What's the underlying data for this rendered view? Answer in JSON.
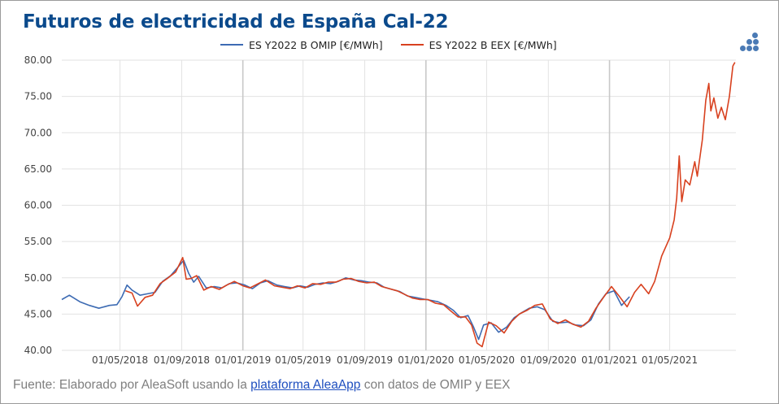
{
  "title": "Futuros de electricidad de España Cal-22",
  "footer": {
    "prefix": "Fuente: Elaborado por AleaSoft usando la ",
    "link": "plataforma AleaApp",
    "suffix": " con datos de OMIP y EEX"
  },
  "logo_icon": "aleasoft-dots-icon",
  "colors": {
    "omip": "#3d6bb3",
    "eex": "#d8411f",
    "grid": "#e2e2e2",
    "title": "#0b4a8c"
  },
  "chart_data": {
    "type": "line",
    "title": "Futuros de electricidad de España Cal-22",
    "xlabel": "",
    "ylabel": "",
    "ylim": [
      40,
      80
    ],
    "yticks": [
      "40.00",
      "45.00",
      "50.00",
      "55.00",
      "60.00",
      "65.00",
      "70.00",
      "75.00",
      "80.00"
    ],
    "x_ticks": [
      "01/05/2018",
      "01/09/2018",
      "01/01/2019",
      "01/05/2019",
      "01/09/2019",
      "01/01/2020",
      "01/05/2020",
      "01/09/2020",
      "01/01/2021",
      "01/05/2021"
    ],
    "x_range": [
      "2018-01-05",
      "2021-09-10"
    ],
    "legend": "top-center",
    "grid": true,
    "series": [
      {
        "name": "ES Y2022 B OMIP [€/MWh]",
        "color": "#3d6bb3",
        "points": [
          [
            "2018-01-05",
            47.0
          ],
          [
            "2018-01-20",
            47.6
          ],
          [
            "2018-02-10",
            46.7
          ],
          [
            "2018-03-01",
            46.2
          ],
          [
            "2018-03-20",
            45.8
          ],
          [
            "2018-04-10",
            46.2
          ],
          [
            "2018-04-25",
            46.3
          ],
          [
            "2018-05-05",
            47.4
          ],
          [
            "2018-05-15",
            49.0
          ],
          [
            "2018-05-25",
            48.3
          ],
          [
            "2018-06-10",
            47.6
          ],
          [
            "2018-06-25",
            47.8
          ],
          [
            "2018-07-10",
            48.0
          ],
          [
            "2018-07-25",
            49.5
          ],
          [
            "2018-08-10",
            50.3
          ],
          [
            "2018-08-25",
            51.5
          ],
          [
            "2018-09-05",
            52.4
          ],
          [
            "2018-09-15",
            50.6
          ],
          [
            "2018-09-25",
            49.4
          ],
          [
            "2018-10-05",
            50.2
          ],
          [
            "2018-10-20",
            48.6
          ],
          [
            "2018-11-05",
            48.8
          ],
          [
            "2018-11-20",
            48.6
          ],
          [
            "2018-12-05",
            49.2
          ],
          [
            "2018-12-20",
            49.3
          ],
          [
            "2019-01-05",
            49.0
          ],
          [
            "2019-01-20",
            48.5
          ],
          [
            "2019-02-05",
            49.3
          ],
          [
            "2019-02-20",
            49.6
          ],
          [
            "2019-03-10",
            49.0
          ],
          [
            "2019-03-25",
            48.8
          ],
          [
            "2019-04-10",
            48.6
          ],
          [
            "2019-04-25",
            48.9
          ],
          [
            "2019-05-10",
            48.7
          ],
          [
            "2019-05-25",
            49.1
          ],
          [
            "2019-06-10",
            49.3
          ],
          [
            "2019-06-25",
            49.2
          ],
          [
            "2019-07-10",
            49.5
          ],
          [
            "2019-07-25",
            50.0
          ],
          [
            "2019-08-10",
            49.7
          ],
          [
            "2019-08-25",
            49.6
          ],
          [
            "2019-09-10",
            49.4
          ],
          [
            "2019-09-25",
            49.3
          ],
          [
            "2019-10-10",
            48.7
          ],
          [
            "2019-10-25",
            48.4
          ],
          [
            "2019-11-10",
            48.1
          ],
          [
            "2019-11-25",
            47.5
          ],
          [
            "2019-12-10",
            47.3
          ],
          [
            "2019-12-25",
            47.1
          ],
          [
            "2020-01-10",
            46.9
          ],
          [
            "2020-01-25",
            46.7
          ],
          [
            "2020-02-10",
            46.2
          ],
          [
            "2020-02-25",
            45.5
          ],
          [
            "2020-03-10",
            44.5
          ],
          [
            "2020-03-25",
            44.8
          ],
          [
            "2020-04-05",
            43.2
          ],
          [
            "2020-04-15",
            41.5
          ],
          [
            "2020-04-25",
            43.5
          ],
          [
            "2020-05-10",
            43.8
          ],
          [
            "2020-05-25",
            42.5
          ],
          [
            "2020-06-10",
            43.2
          ],
          [
            "2020-06-25",
            44.5
          ],
          [
            "2020-07-10",
            45.2
          ],
          [
            "2020-07-25",
            45.8
          ],
          [
            "2020-08-10",
            46.0
          ],
          [
            "2020-08-25",
            45.6
          ],
          [
            "2020-09-10",
            44.0
          ],
          [
            "2020-09-25",
            43.8
          ],
          [
            "2020-10-10",
            43.9
          ],
          [
            "2020-10-25",
            43.5
          ],
          [
            "2020-11-10",
            43.4
          ],
          [
            "2020-11-25",
            44.2
          ],
          [
            "2020-12-10",
            46.4
          ],
          [
            "2020-12-25",
            47.8
          ],
          [
            "2021-01-10",
            48.2
          ],
          [
            "2021-01-25",
            46.2
          ],
          [
            "2021-02-10",
            47.4
          ]
        ]
      },
      {
        "name": "ES Y2022 B EEX [€/MWh]",
        "color": "#d8411f",
        "points": [
          [
            "2018-05-12",
            48.2
          ],
          [
            "2018-05-25",
            47.9
          ],
          [
            "2018-06-05",
            46.1
          ],
          [
            "2018-06-20",
            47.3
          ],
          [
            "2018-07-05",
            47.6
          ],
          [
            "2018-07-20",
            49.2
          ],
          [
            "2018-08-05",
            50.0
          ],
          [
            "2018-08-20",
            50.8
          ],
          [
            "2018-09-03",
            52.8
          ],
          [
            "2018-09-10",
            49.8
          ],
          [
            "2018-09-20",
            49.9
          ],
          [
            "2018-10-01",
            50.3
          ],
          [
            "2018-10-15",
            48.3
          ],
          [
            "2018-10-30",
            48.8
          ],
          [
            "2018-11-15",
            48.4
          ],
          [
            "2018-11-30",
            49.0
          ],
          [
            "2018-12-15",
            49.5
          ],
          [
            "2019-01-01",
            48.9
          ],
          [
            "2019-01-15",
            48.6
          ],
          [
            "2019-02-01",
            49.2
          ],
          [
            "2019-02-15",
            49.7
          ],
          [
            "2019-03-05",
            48.9
          ],
          [
            "2019-03-20",
            48.7
          ],
          [
            "2019-04-05",
            48.5
          ],
          [
            "2019-04-20",
            48.9
          ],
          [
            "2019-05-05",
            48.6
          ],
          [
            "2019-05-20",
            49.2
          ],
          [
            "2019-06-05",
            49.1
          ],
          [
            "2019-06-20",
            49.4
          ],
          [
            "2019-07-05",
            49.4
          ],
          [
            "2019-07-20",
            49.8
          ],
          [
            "2019-08-05",
            49.9
          ],
          [
            "2019-08-20",
            49.5
          ],
          [
            "2019-09-05",
            49.3
          ],
          [
            "2019-09-20",
            49.4
          ],
          [
            "2019-10-05",
            48.8
          ],
          [
            "2019-10-20",
            48.5
          ],
          [
            "2019-11-05",
            48.2
          ],
          [
            "2019-11-20",
            47.7
          ],
          [
            "2019-12-05",
            47.2
          ],
          [
            "2019-12-20",
            47.0
          ],
          [
            "2020-01-05",
            47.0
          ],
          [
            "2020-01-20",
            46.5
          ],
          [
            "2020-02-05",
            46.3
          ],
          [
            "2020-02-20",
            45.4
          ],
          [
            "2020-03-05",
            44.6
          ],
          [
            "2020-03-20",
            44.6
          ],
          [
            "2020-04-01",
            43.5
          ],
          [
            "2020-04-12",
            41.0
          ],
          [
            "2020-04-22",
            40.5
          ],
          [
            "2020-05-05",
            43.9
          ],
          [
            "2020-05-20",
            43.4
          ],
          [
            "2020-06-05",
            42.4
          ],
          [
            "2020-06-20",
            44.0
          ],
          [
            "2020-07-05",
            45.0
          ],
          [
            "2020-07-20",
            45.5
          ],
          [
            "2020-08-05",
            46.2
          ],
          [
            "2020-08-20",
            46.4
          ],
          [
            "2020-09-05",
            44.3
          ],
          [
            "2020-09-20",
            43.7
          ],
          [
            "2020-10-05",
            44.2
          ],
          [
            "2020-10-20",
            43.6
          ],
          [
            "2020-11-05",
            43.2
          ],
          [
            "2020-11-20",
            44.0
          ],
          [
            "2020-12-05",
            45.8
          ],
          [
            "2020-12-20",
            47.3
          ],
          [
            "2021-01-05",
            48.8
          ],
          [
            "2021-01-20",
            47.5
          ],
          [
            "2021-02-05",
            46.0
          ],
          [
            "2021-02-20",
            48.0
          ],
          [
            "2021-03-05",
            49.1
          ],
          [
            "2021-03-20",
            47.8
          ],
          [
            "2021-04-01",
            49.5
          ],
          [
            "2021-04-15",
            53.0
          ],
          [
            "2021-05-01",
            55.5
          ],
          [
            "2021-05-10",
            58.0
          ],
          [
            "2021-05-15",
            61.0
          ],
          [
            "2021-05-20",
            66.8
          ],
          [
            "2021-05-25",
            60.5
          ],
          [
            "2021-06-01",
            63.5
          ],
          [
            "2021-06-10",
            62.8
          ],
          [
            "2021-06-20",
            66.0
          ],
          [
            "2021-06-25",
            64.0
          ],
          [
            "2021-07-05",
            69.0
          ],
          [
            "2021-07-12",
            74.5
          ],
          [
            "2021-07-18",
            76.8
          ],
          [
            "2021-07-22",
            73.0
          ],
          [
            "2021-07-28",
            74.8
          ],
          [
            "2021-08-05",
            72.0
          ],
          [
            "2021-08-12",
            73.5
          ],
          [
            "2021-08-20",
            71.8
          ],
          [
            "2021-08-28",
            75.0
          ],
          [
            "2021-09-04",
            79.2
          ],
          [
            "2021-09-08",
            79.7
          ]
        ]
      }
    ]
  }
}
